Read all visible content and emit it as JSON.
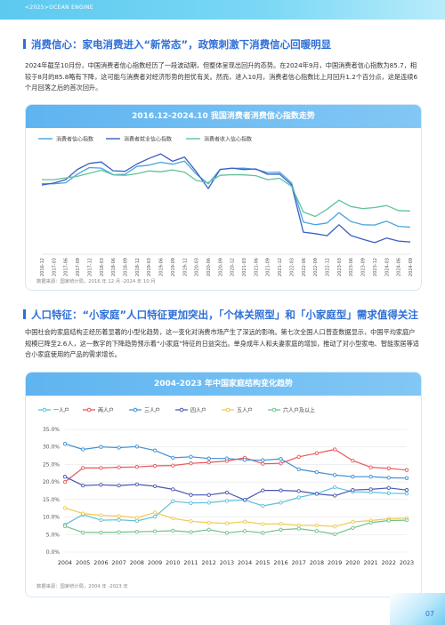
{
  "header": {
    "brand": "<2025>OCEAN ENGINE"
  },
  "section1": {
    "title": "消费信心：家电消费进入“新常态”，政策刺激下消费信心回暖明显",
    "body": "2024年截至10月份，中国消费者信心指数经历了一段波动期，但整体呈现出回升的态势。在2024年9月，中国消费者信心指数为85.7，相较于8月的85.8略有下降，这可能与消费者对经济形势的担忧有关。然而，进入10月，消费者信心指数比上月回升1.2个百分点，这是连续6个月回落之后的首次回升。"
  },
  "chart1": {
    "title": "2016.12-2024.10 我国消费者消费信心指数走势",
    "source": "数据来源：国家统计局，2016 年 12 月 -2024 年 10 月",
    "chart_data": {
      "type": "line",
      "title": "2016.12-2024.10 我国消费者消费信心指数走势",
      "x": [
        "2016-12",
        "2017-03",
        "2017-06",
        "2017-09",
        "2017-12",
        "2018-03",
        "2018-06",
        "2018-09",
        "2018-12",
        "2019-03",
        "2019-06",
        "2019-09",
        "2019-12",
        "2020-03",
        "2020-06",
        "2020-09",
        "2020-12",
        "2021-03",
        "2021-06",
        "2021-09",
        "2021-12",
        "2022-03",
        "2022-06",
        "2022-09",
        "2022-12",
        "2023-03",
        "2023-06",
        "2023-09",
        "2023-12",
        "2024-03",
        "2024-06",
        "2024-09"
      ],
      "series": [
        {
          "name": "消费者信心指数",
          "color": "#4aa3e0",
          "values": [
            112.6,
            112.6,
            113.2,
            118.6,
            122.6,
            122.3,
            118.2,
            118.5,
            123.3,
            124.1,
            125.9,
            124.7,
            126.6,
            118.6,
            112.6,
            121.5,
            122.1,
            122.2,
            121.5,
            119.5,
            119.8,
            113.2,
            88.9,
            87.2,
            88.3,
            94.7,
            89.2,
            87.2,
            87.0,
            89.4,
            86.2,
            85.7
          ]
        },
        {
          "name": "消费者就业信心指数",
          "color": "#3b5fc4",
          "values": [
            111.8,
            113.0,
            115.1,
            121.5,
            125.2,
            126.1,
            120.6,
            120.3,
            124.8,
            128.2,
            131.1,
            126.5,
            129.1,
            120.0,
            109.6,
            121.4,
            122.3,
            121.4,
            121.8,
            118.5,
            118.6,
            112.0,
            82.6,
            81.7,
            80.4,
            87.2,
            80.5,
            78.2,
            76.1,
            78.9,
            77.1,
            76.5
          ]
        },
        {
          "name": "消费者收入信心指数",
          "color": "#62c29a",
          "values": [
            115.1,
            115.1,
            116.2,
            117.2,
            119.1,
            121.0,
            118.1,
            117.8,
            118.8,
            120.5,
            120.0,
            121.2,
            119.8,
            114.6,
            113.3,
            117.8,
            118.2,
            118.1,
            117.6,
            115.1,
            116.0,
            111.1,
            95.1,
            92.3,
            96.8,
            102.4,
            98.5,
            97.2,
            97.8,
            99.1,
            96.0,
            95.7
          ]
        }
      ],
      "ylim": [
        70,
        135
      ],
      "legend": "top-left"
    }
  },
  "section2": {
    "title": "人口特征：“小家庭”人口特征更加突出，「个体关照型」和「小家庭型」需求值得关注",
    "body": "中国社会的家庭结构正经历着显著的小型化趋势，这一变化对消费市场产生了深远的影响。第七次全国人口普查数据显示，中国平均家庭户规模已降至2.6人，这一数字的下降趋势预示着“小家庭”特征的日益突出。单身成年人和夫妻家庭的增加，推动了对小型家电、智能家居等适合小家庭使用的产品的需求增长。"
  },
  "chart2": {
    "title": "2004-2023 年中国家庭结构变化趋势",
    "source": "数据来源：国家统计局，2004 年 -2023 年",
    "chart_data": {
      "type": "line",
      "title": "2004-2023 年中国家庭结构变化趋势",
      "categories": [
        "2004",
        "2005",
        "2006",
        "2007",
        "2008",
        "2009",
        "2010",
        "2011",
        "2012",
        "2013",
        "2014",
        "2015",
        "2016",
        "2017",
        "2018",
        "2019",
        "2020",
        "2021",
        "2022",
        "2023"
      ],
      "yticks": [
        "0.0%",
        "5.0%",
        "10.0%",
        "15.0%",
        "20.0%",
        "25.0%",
        "30.0%",
        "35.0%"
      ],
      "ylim": [
        0,
        35
      ],
      "series": [
        {
          "name": "一人户",
          "color": "#5bc0d8",
          "values": [
            7.8,
            10.7,
            9.1,
            9.2,
            8.9,
            10.1,
            14.5,
            14.0,
            14.1,
            14.6,
            14.9,
            13.2,
            14.1,
            15.6,
            16.7,
            18.5,
            17.2,
            17.1,
            16.8,
            16.7
          ]
        },
        {
          "name": "两人户",
          "color": "#e8565a",
          "values": [
            20.0,
            24.0,
            24.0,
            24.2,
            24.3,
            24.6,
            24.7,
            25.3,
            25.6,
            26.0,
            26.9,
            25.2,
            25.3,
            27.2,
            28.2,
            29.3,
            26.1,
            24.2,
            23.9,
            23.4
          ]
        },
        {
          "name": "三人户",
          "color": "#3f8fd0",
          "values": [
            30.9,
            29.3,
            30.0,
            29.8,
            30.1,
            29.0,
            26.9,
            27.2,
            26.7,
            26.7,
            26.3,
            26.2,
            26.6,
            23.6,
            22.8,
            22.0,
            21.5,
            21.5,
            21.2,
            21.1
          ]
        },
        {
          "name": "四人户",
          "color": "#4a57b3",
          "values": [
            21.5,
            19.0,
            19.2,
            19.0,
            19.3,
            18.8,
            17.9,
            16.3,
            16.3,
            17.0,
            14.9,
            17.6,
            17.6,
            17.4,
            16.6,
            16.1,
            17.7,
            17.9,
            18.3,
            17.7
          ]
        },
        {
          "name": "五人户",
          "color": "#f2c94c",
          "values": [
            12.6,
            11.0,
            10.5,
            10.3,
            9.8,
            11.3,
            9.6,
            8.8,
            8.4,
            8.2,
            8.7,
            8.0,
            8.1,
            7.6,
            7.6,
            7.3,
            8.6,
            9.0,
            9.5,
            9.7
          ]
        },
        {
          "name": "六人户及以上",
          "color": "#6ec38a",
          "values": [
            7.4,
            5.6,
            5.6,
            5.7,
            5.8,
            5.9,
            6.1,
            5.7,
            6.4,
            5.5,
            6.0,
            5.5,
            6.4,
            6.7,
            6.0,
            5.1,
            6.9,
            8.4,
            9.0,
            9.1
          ]
        }
      ],
      "legend": "top"
    }
  },
  "footer": {
    "page": "07"
  }
}
